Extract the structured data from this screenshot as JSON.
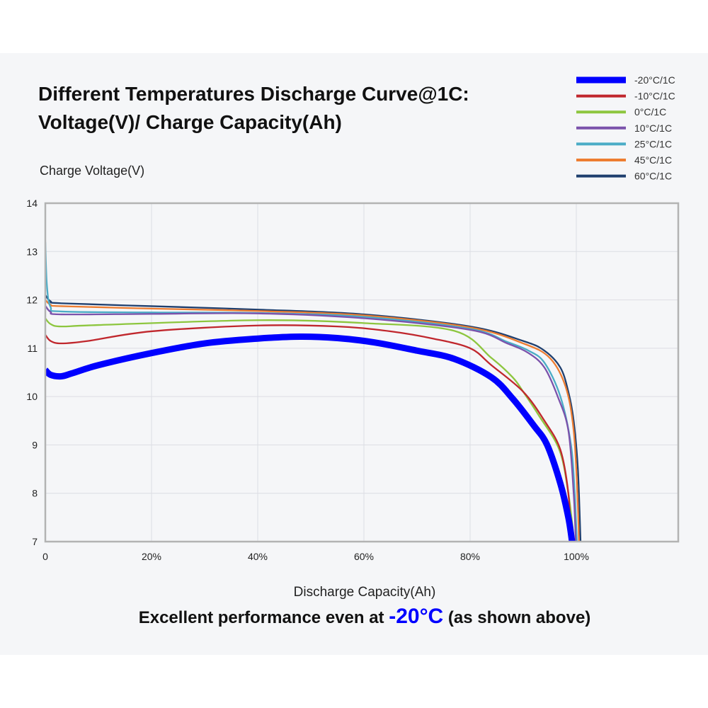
{
  "title_line1": "Different Temperatures Discharge Curve@1C:",
  "title_line2": "Voltage(V)/ Charge Capacity(Ah)",
  "tagline": {
    "prefix": "Excellent performance even at ",
    "highlight": "-20°C",
    "suffix": " (as shown above)",
    "highlight_color": "#0000ff"
  },
  "chart_data": {
    "type": "line",
    "xlabel": "Discharge Capacity(Ah)",
    "ylabel": "Charge Voltage(V)",
    "xlim": [
      0,
      120
    ],
    "ylim": [
      7,
      14
    ],
    "x_ticks": [
      {
        "v": 0,
        "label": "0"
      },
      {
        "v": 20,
        "label": "20%"
      },
      {
        "v": 40,
        "label": "40%"
      },
      {
        "v": 60,
        "label": "60%"
      },
      {
        "v": 80,
        "label": "80%"
      },
      {
        "v": 100,
        "label": "100%"
      }
    ],
    "y_ticks": [
      7,
      8,
      9,
      10,
      11,
      12,
      13,
      14
    ],
    "grid": true,
    "legend_position": "top-right",
    "series": [
      {
        "name": "-20°C/1C",
        "color": "#0000ff",
        "points": [
          [
            0,
            10.55
          ],
          [
            1,
            10.45
          ],
          [
            3,
            10.42
          ],
          [
            5,
            10.48
          ],
          [
            10,
            10.65
          ],
          [
            20,
            10.9
          ],
          [
            30,
            11.1
          ],
          [
            40,
            11.2
          ],
          [
            48,
            11.24
          ],
          [
            55,
            11.21
          ],
          [
            62,
            11.12
          ],
          [
            70,
            10.95
          ],
          [
            77,
            10.78
          ],
          [
            84,
            10.4
          ],
          [
            88,
            9.96
          ],
          [
            92,
            9.4
          ],
          [
            94.5,
            9.0
          ],
          [
            97,
            8.2
          ],
          [
            98.5,
            7.5
          ],
          [
            99.2,
            7.0
          ]
        ]
      },
      {
        "name": "-10°C/1C",
        "color": "#c0272d",
        "points": [
          [
            0,
            11.28
          ],
          [
            1,
            11.15
          ],
          [
            3,
            11.1
          ],
          [
            8,
            11.15
          ],
          [
            20,
            11.35
          ],
          [
            40,
            11.47
          ],
          [
            55,
            11.45
          ],
          [
            65,
            11.35
          ],
          [
            73,
            11.2
          ],
          [
            80,
            11.0
          ],
          [
            84,
            10.65
          ],
          [
            90,
            10.1
          ],
          [
            94,
            9.5
          ],
          [
            97,
            8.9
          ],
          [
            98.5,
            8.0
          ],
          [
            99,
            7.0
          ]
        ]
      },
      {
        "name": "0°C/1C",
        "color": "#8dc63f",
        "points": [
          [
            0,
            11.62
          ],
          [
            1,
            11.5
          ],
          [
            3,
            11.45
          ],
          [
            10,
            11.48
          ],
          [
            40,
            11.58
          ],
          [
            60,
            11.52
          ],
          [
            77,
            11.36
          ],
          [
            84,
            10.8
          ],
          [
            88,
            10.4
          ],
          [
            90,
            10.1
          ],
          [
            93,
            9.6
          ],
          [
            96.8,
            8.9
          ],
          [
            98.5,
            8.0
          ],
          [
            99.6,
            7.0
          ]
        ]
      },
      {
        "name": "10°C/1C",
        "color": "#7b52ab",
        "points": [
          [
            0,
            11.88
          ],
          [
            1,
            11.75
          ],
          [
            3,
            11.7
          ],
          [
            20,
            11.71
          ],
          [
            40,
            11.72
          ],
          [
            60,
            11.62
          ],
          [
            80,
            11.38
          ],
          [
            87,
            11.1
          ],
          [
            91,
            10.9
          ],
          [
            94,
            10.6
          ],
          [
            96.5,
            10.0
          ],
          [
            98.5,
            9.3
          ],
          [
            99.5,
            8.0
          ],
          [
            99.9,
            7.0
          ]
        ]
      },
      {
        "name": "25°C/1C",
        "color": "#4bacc6",
        "points": [
          [
            0,
            13.2
          ],
          [
            0.3,
            12.3
          ],
          [
            1,
            11.85
          ],
          [
            3,
            11.76
          ],
          [
            20,
            11.74
          ],
          [
            40,
            11.73
          ],
          [
            60,
            11.65
          ],
          [
            80,
            11.4
          ],
          [
            87,
            11.13
          ],
          [
            91,
            10.95
          ],
          [
            94,
            10.7
          ],
          [
            97,
            10.0
          ],
          [
            99,
            9.0
          ],
          [
            99.7,
            8.0
          ],
          [
            100.1,
            7.0
          ]
        ]
      },
      {
        "name": "45°C/1C",
        "color": "#ed7d31",
        "points": [
          [
            0,
            12.0
          ],
          [
            1,
            11.9
          ],
          [
            3,
            11.87
          ],
          [
            20,
            11.82
          ],
          [
            40,
            11.77
          ],
          [
            60,
            11.68
          ],
          [
            80,
            11.43
          ],
          [
            90,
            11.1
          ],
          [
            95,
            10.8
          ],
          [
            98,
            10.2
          ],
          [
            99.5,
            9.3
          ],
          [
            100.2,
            8.0
          ],
          [
            100.5,
            7.0
          ]
        ]
      },
      {
        "name": "60°C/1C",
        "color": "#1f3f6e",
        "points": [
          [
            0,
            12.1
          ],
          [
            1,
            11.97
          ],
          [
            3,
            11.93
          ],
          [
            20,
            11.87
          ],
          [
            40,
            11.8
          ],
          [
            60,
            11.7
          ],
          [
            80,
            11.45
          ],
          [
            90,
            11.15
          ],
          [
            94,
            10.95
          ],
          [
            97,
            10.6
          ],
          [
            98.5,
            10.1
          ],
          [
            99.5,
            9.5
          ],
          [
            100.3,
            8.5
          ],
          [
            100.8,
            7.0
          ]
        ]
      }
    ]
  }
}
